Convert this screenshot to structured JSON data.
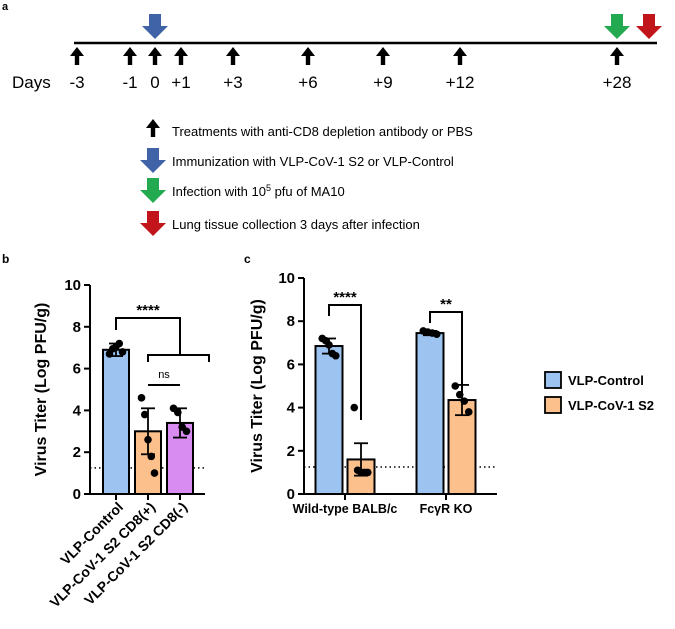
{
  "panels": {
    "a": "a",
    "b": "b",
    "c": "c"
  },
  "timeline": {
    "days_label": "Days",
    "days": [
      "-3",
      "-1",
      "0",
      "+1",
      "+3",
      "+6",
      "+9",
      "+12",
      "+28"
    ],
    "legend": [
      {
        "color": "#111111",
        "label": "Treatments with anti-CD8 depletion antibody or PBS"
      },
      {
        "color": "#3f63a6",
        "label": "Immunization with VLP-CoV-1 S2 or VLP-Control"
      },
      {
        "color": "#23a94f",
        "label_pre": "Infection with 10",
        "label_sup": "5",
        "label_post": " pfu of MA10"
      },
      {
        "color": "#c1151b",
        "label": "Lung tissue collection 3 days after infection"
      }
    ],
    "colors": {
      "immunization": "#3f63a6",
      "infection": "#23a94f",
      "collection": "#c1151b",
      "treatment": "#111111"
    }
  },
  "chart_data": [
    {
      "panel": "b",
      "type": "bar",
      "ylabel": "Virus Titer (Log PFU/g)",
      "ylim": [
        0,
        10
      ],
      "yticks": [
        "0",
        "2",
        "4",
        "6",
        "8",
        "10"
      ],
      "limit_of_detection": 1.25,
      "categories": [
        "VLP-Control",
        "VLP-CoV-1 S2 CD8(+)",
        "VLP-CoV-1 S2 CD8(-)"
      ],
      "values": [
        6.9,
        3.0,
        3.4
      ],
      "errors": [
        0.3,
        1.1,
        0.7
      ],
      "colors": [
        "#9dc3f0",
        "#fbc08c",
        "#d88cf1"
      ],
      "points": [
        [
          6.7,
          6.95,
          7.05,
          7.2,
          6.8
        ],
        [
          4.6,
          3.8,
          2.6,
          1.8,
          1.0
        ],
        [
          4.1,
          3.9,
          3.2,
          3.0
        ]
      ],
      "annotations": [
        {
          "text": "****",
          "from": 0,
          "to": [
            1,
            2
          ]
        },
        {
          "text": "ns",
          "from": 1,
          "to": 2
        }
      ]
    },
    {
      "panel": "c",
      "type": "bar",
      "ylabel": "Virus Titer (Log PFU/g)",
      "ylim": [
        0,
        10
      ],
      "yticks": [
        "0",
        "2",
        "4",
        "6",
        "8",
        "10"
      ],
      "limit_of_detection": 1.25,
      "categories": [
        "Wild-type BALB/c",
        "FcγR KO"
      ],
      "series": [
        {
          "name": "VLP-Control",
          "color": "#9dc3f0",
          "values": [
            6.85,
            7.45
          ],
          "errors": [
            0.35,
            0.1
          ],
          "points": [
            [
              7.2,
              7.1,
              6.9,
              6.5,
              6.4
            ],
            [
              7.55,
              7.5,
              7.45,
              7.4
            ]
          ]
        },
        {
          "name": "VLP-CoV-1 S2",
          "color": "#fbc08c",
          "values": [
            1.6,
            4.35
          ],
          "errors": [
            0.75,
            0.7
          ],
          "points": [
            [
              4.0,
              1.1,
              1.0,
              1.0,
              1.0
            ],
            [
              5.0,
              4.6,
              4.3,
              3.8
            ]
          ]
        }
      ],
      "annotations": [
        {
          "text": "****",
          "group": 0
        },
        {
          "text": "**",
          "group": 1
        }
      ],
      "legend": [
        "VLP-Control",
        "VLP-CoV-1 S2"
      ]
    }
  ]
}
